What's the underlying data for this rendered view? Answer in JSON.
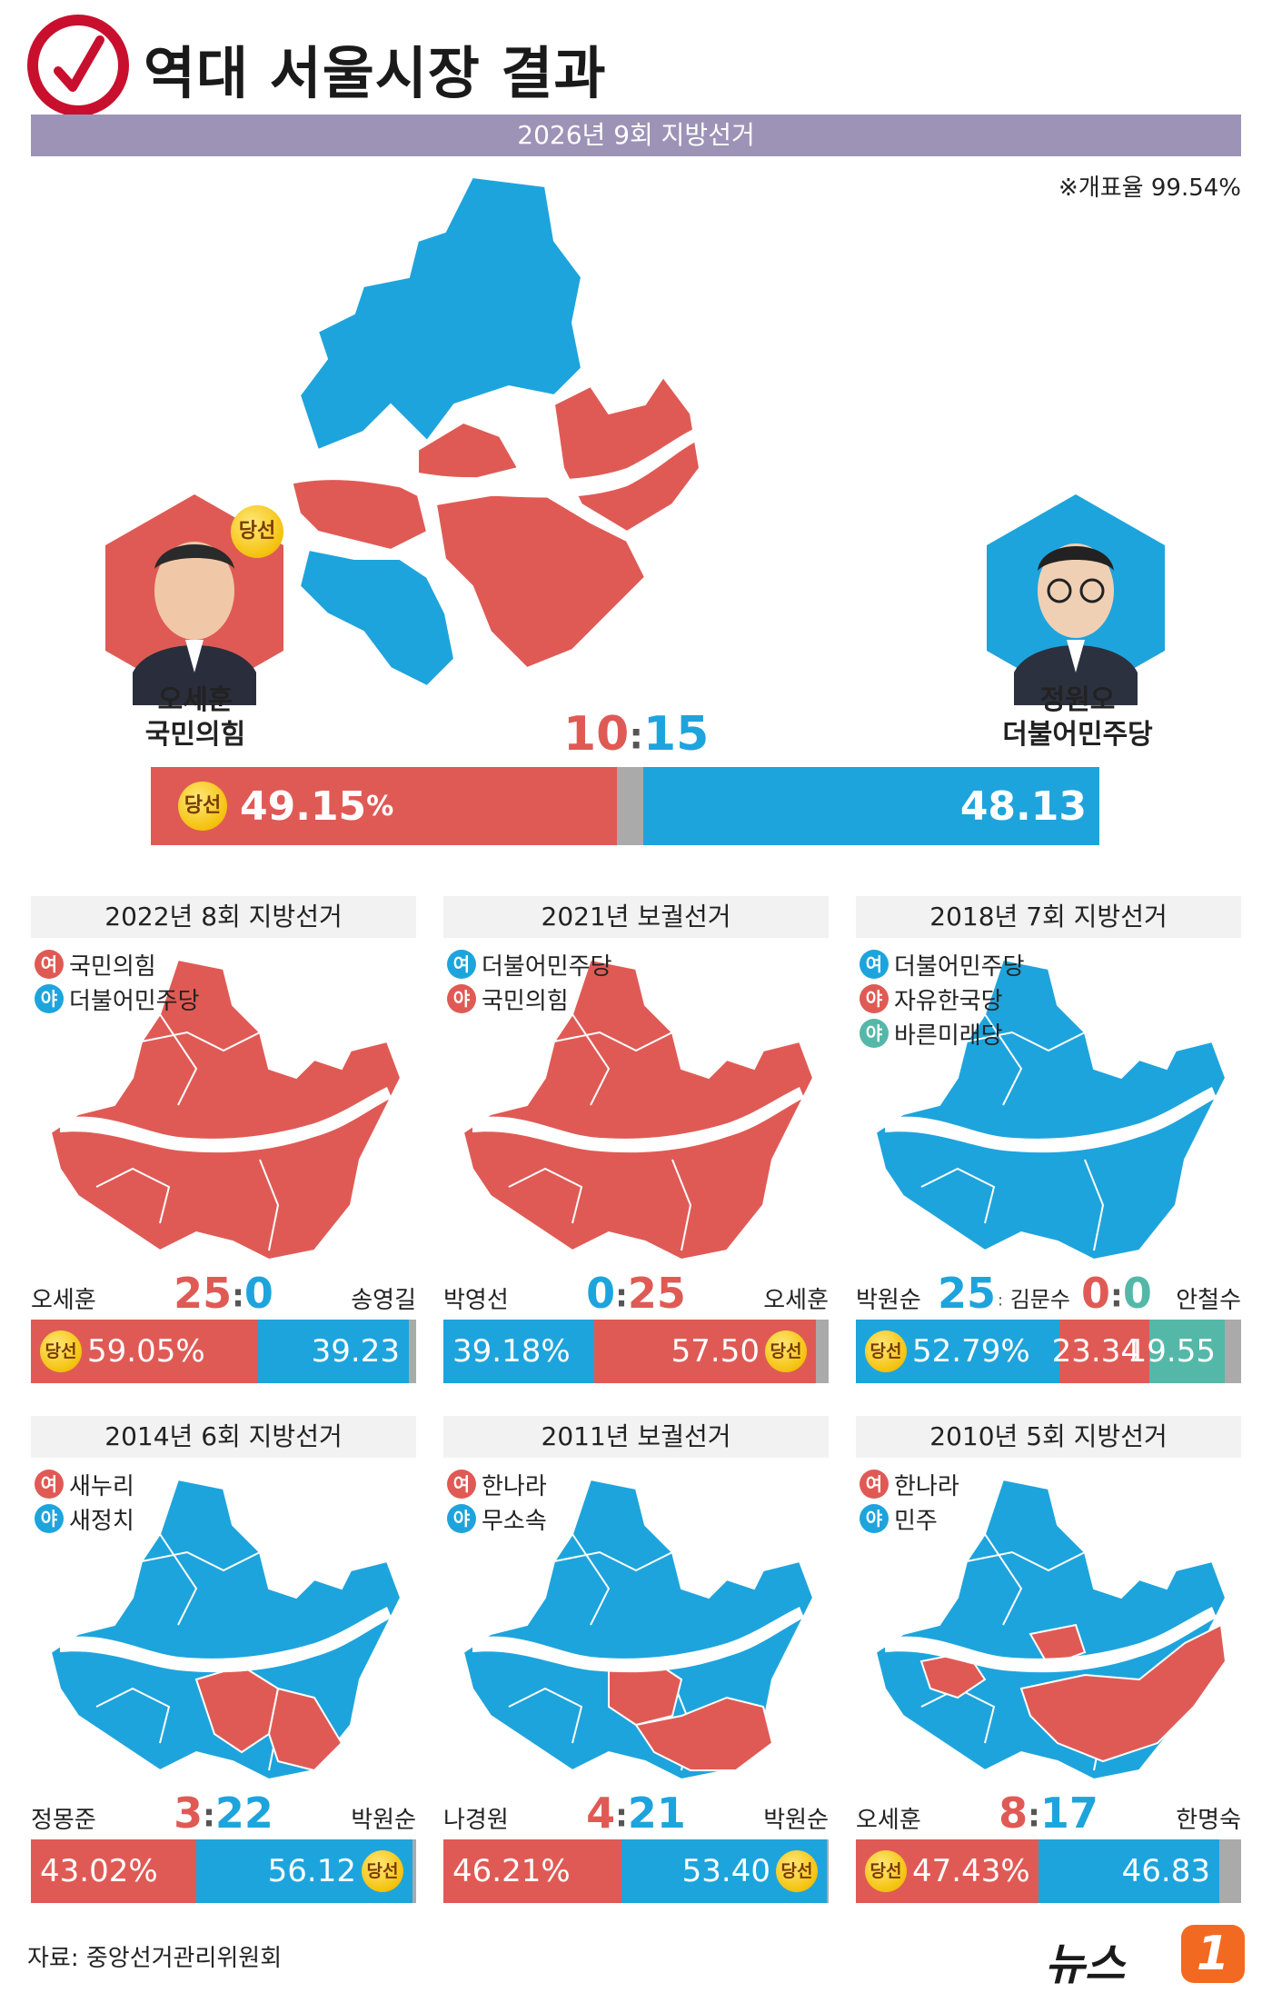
{
  "header": {
    "title": "역대 서울시장 결과",
    "banner": "2026년 9회 지방선거",
    "count_rate": "※개표율 99.54%"
  },
  "main": {
    "winner_badge": "당선",
    "left_candidate": {
      "name": "오세훈",
      "party": "국민의힘"
    },
    "right_candidate": {
      "name": "정원오",
      "party": "더불어민주당"
    },
    "score_left": "10",
    "score_right": "15",
    "left_pct": "49.15",
    "right_pct": "48.13",
    "pct_unit": "%",
    "left_share": 49.15,
    "right_share": 48.13
  },
  "panels": [
    {
      "title": "2022년 8회 지방선거",
      "legend": [
        {
          "mark": "여",
          "label": "국민의힘",
          "color": "#e05a55"
        },
        {
          "mark": "야",
          "label": "더불어민주당",
          "color": "#1ea4dc"
        }
      ],
      "map": "red",
      "left_name": "오세훈",
      "right_name": "송영길",
      "score_left": "25",
      "score_right": "0",
      "bar": [
        {
          "value": "59.05%",
          "share": 59.05,
          "color": "red",
          "badge": "당선"
        },
        {
          "value": "39.23",
          "share": 39.23,
          "color": "blue"
        }
      ]
    },
    {
      "title": "2021년 보궐선거",
      "legend": [
        {
          "mark": "여",
          "label": "더불어민주당",
          "color": "#1ea4dc"
        },
        {
          "mark": "야",
          "label": "국민의힘",
          "color": "#e05a55"
        }
      ],
      "map": "red",
      "left_name": "박영선",
      "right_name": "오세훈",
      "score_left": "0",
      "score_right": "25",
      "bar": [
        {
          "value": "39.18%",
          "share": 39.18,
          "color": "blue"
        },
        {
          "value": "57.50",
          "share": 57.5,
          "color": "red",
          "badge": "당선"
        }
      ]
    },
    {
      "title": "2018년 7회 지방선거",
      "legend": [
        {
          "mark": "여",
          "label": "더불어민주당",
          "color": "#1ea4dc"
        },
        {
          "mark": "야",
          "label": "자유한국당",
          "color": "#e05a55"
        },
        {
          "mark": "야",
          "label": "바른미래당",
          "color": "#54b8a8"
        }
      ],
      "map": "blue",
      "left_name": "박원순",
      "mid_name": "김문수",
      "right_name": "안철수",
      "score_left": "25",
      "score_mid": "0",
      "score_right": "0",
      "bar": [
        {
          "value": "52.79%",
          "share": 52.79,
          "color": "blue",
          "badge": "당선"
        },
        {
          "value": "23.34",
          "share": 23.34,
          "color": "red"
        },
        {
          "value": "19.55",
          "share": 19.55,
          "color": "teal"
        }
      ]
    },
    {
      "title": "2014년 6회 지방선거",
      "legend": [
        {
          "mark": "여",
          "label": "새누리",
          "color": "#e05a55"
        },
        {
          "mark": "야",
          "label": "새정치",
          "color": "#1ea4dc"
        }
      ],
      "map": "mixed3",
      "left_name": "정몽준",
      "right_name": "박원순",
      "score_left": "3",
      "score_right": "22",
      "bar": [
        {
          "value": "43.02%",
          "share": 43.02,
          "color": "red"
        },
        {
          "value": "56.12",
          "share": 56.12,
          "color": "blue",
          "badge": "당선"
        }
      ]
    },
    {
      "title": "2011년 보궐선거",
      "legend": [
        {
          "mark": "여",
          "label": "한나라",
          "color": "#e05a55"
        },
        {
          "mark": "야",
          "label": "무소속",
          "color": "#1ea4dc"
        }
      ],
      "map": "mixed4",
      "left_name": "나경원",
      "right_name": "박원순",
      "score_left": "4",
      "score_right": "21",
      "bar": [
        {
          "value": "46.21%",
          "share": 46.21,
          "color": "red"
        },
        {
          "value": "53.40",
          "share": 53.4,
          "color": "blue",
          "badge": "당선"
        }
      ]
    },
    {
      "title": "2010년 5회 지방선거",
      "legend": [
        {
          "mark": "여",
          "label": "한나라",
          "color": "#e05a55"
        },
        {
          "mark": "야",
          "label": "민주",
          "color": "#1ea4dc"
        }
      ],
      "map": "mixed8",
      "left_name": "오세훈",
      "right_name": "한명숙",
      "score_left": "8",
      "score_right": "17",
      "bar": [
        {
          "value": "47.43%",
          "share": 47.43,
          "color": "red",
          "badge": "당선"
        },
        {
          "value": "46.83",
          "share": 46.83,
          "color": "blue"
        }
      ]
    }
  ],
  "footer": {
    "source": "자료: 중앙선거관리위원회",
    "logo_text": "뉴스",
    "logo_num": "1"
  },
  "colors": {
    "red": "#e05a55",
    "blue": "#1ea4dc",
    "teal": "#54b8a8",
    "banner": "#9d93b7"
  }
}
